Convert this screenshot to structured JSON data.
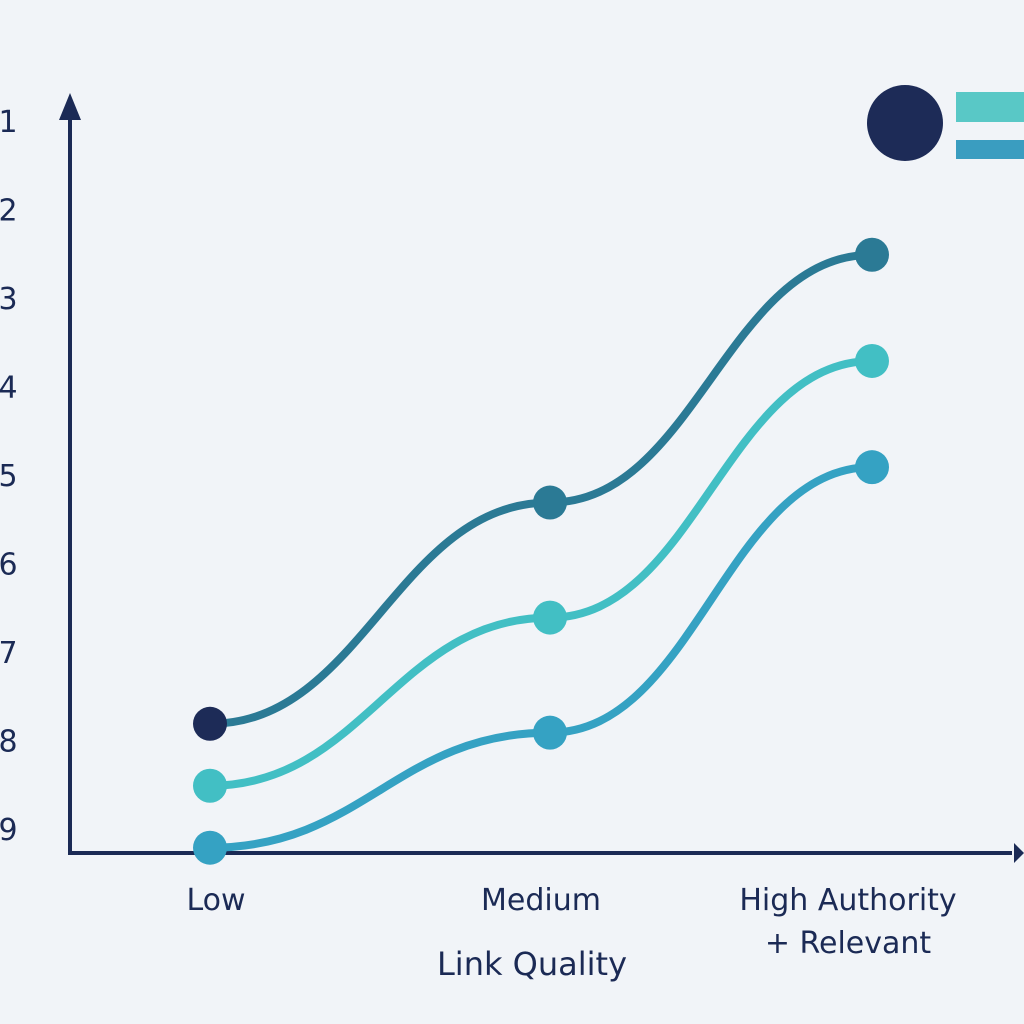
{
  "chart_data": {
    "type": "line",
    "title": "",
    "xlabel": "Link Quality",
    "ylabel": "",
    "categories": [
      "Low",
      "Medium",
      "High Authority\n+ Relevant"
    ],
    "yticks": [
      "1",
      "2",
      "3",
      "4",
      "5",
      "6",
      "7",
      "8",
      "9"
    ],
    "ylim": [
      1,
      9
    ],
    "y_inverted": true,
    "grid": false,
    "legend": "top-right",
    "series": [
      {
        "values": [
          7.8,
          5.3,
          2.5
        ],
        "color": "#2b7a95"
      },
      {
        "values": [
          8.5,
          6.6,
          3.7
        ],
        "color": "#42bfc4"
      },
      {
        "values": [
          9.2,
          7.9,
          4.9
        ],
        "color": "#35a2c3"
      }
    ],
    "first_point_colors": [
      "#1d2b57",
      "#42bfc4",
      "#35a2c3"
    ],
    "legend_items": [
      {
        "color": "#1d2b57",
        "icon": "circle-icon"
      },
      {
        "color": "#59c8c6",
        "icon": "bar-icon"
      },
      {
        "color": "#3a9dc0",
        "icon": "bar-icon"
      }
    ]
  }
}
